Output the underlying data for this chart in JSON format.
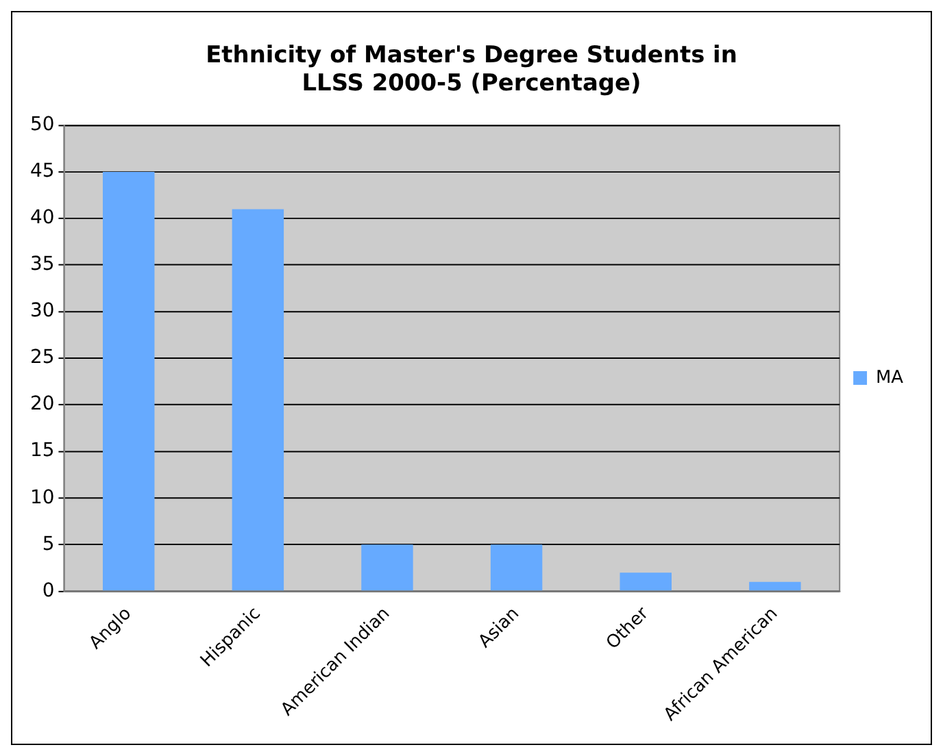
{
  "chart_data": {
    "type": "bar",
    "title": "Ethnicity of Master's Degree Students in LLSS 2000-5 (Percentage)",
    "categories": [
      "Anglo",
      "Hispanic",
      "American Indian",
      "Asian",
      "Other",
      "African American"
    ],
    "series": [
      {
        "name": "MA",
        "color": "#66aaff",
        "values": [
          45,
          41,
          5,
          5,
          2,
          1
        ]
      }
    ],
    "ylim": [
      0,
      50
    ],
    "yticks": [
      0,
      5,
      10,
      15,
      20,
      25,
      30,
      35,
      40,
      45,
      50
    ],
    "grid": "y",
    "legend": "right"
  }
}
